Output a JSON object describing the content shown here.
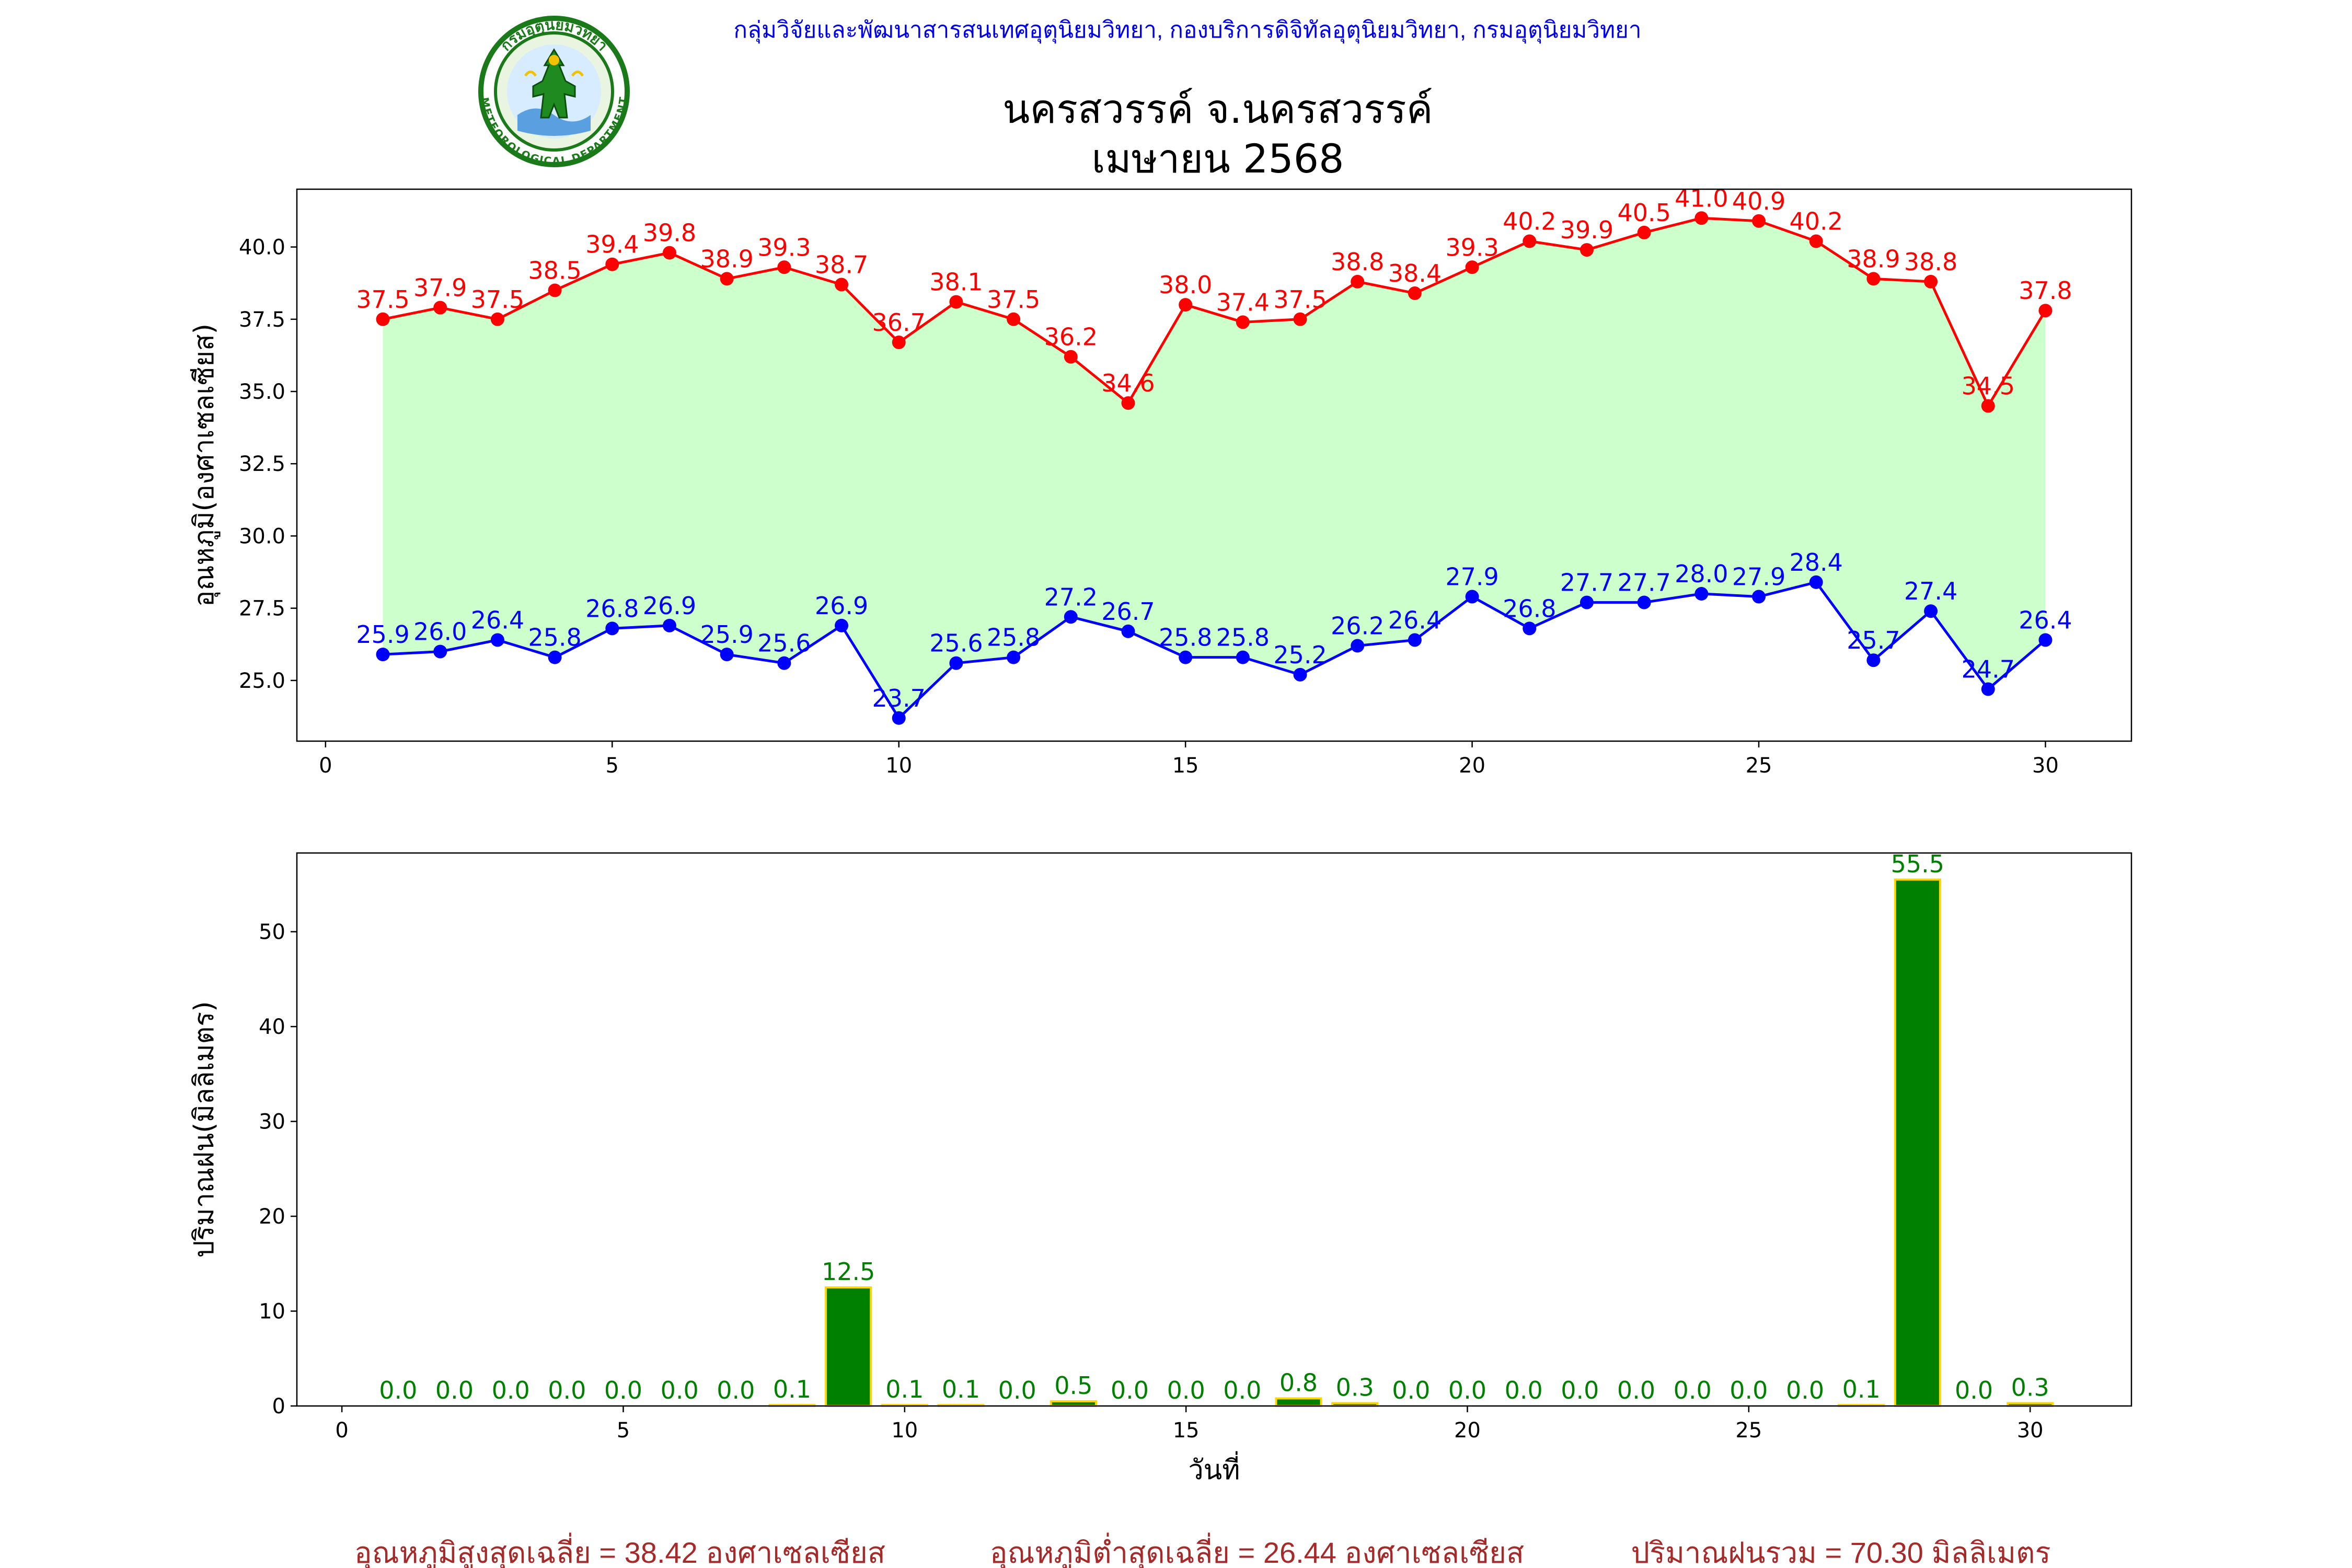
{
  "header": {
    "agency": "กลุ่มวิจัยและพัฒนาสารสนเทศอุตุนิยมวิทยา, กองบริการดิจิทัลอุตุนิยมวิทยา, กรมอุตุนิยมวิทยา",
    "title_line1": "นครสวรรค์  จ.นครสวรรค์",
    "title_line2": "เมษายน 2568",
    "logo_top_text": "กรมอุตุนิยมวิทยา",
    "logo_bottom_text": "METEOROLOGICAL DEPARTMENT"
  },
  "footer": {
    "avg_max": "อุณหภูมิสูงสุดเฉลี่ย = 38.42 องศาเซลเซียส",
    "avg_min": "อุณหภูมิต่ำสุดเฉลี่ย = 26.44 องศาเซลเซียส",
    "total_rain": "ปริมาณฝนรวม = 70.30 มิลลิเมตร"
  },
  "chart_data": [
    {
      "type": "line",
      "ylabel": "อุณหภูมิ(องศาเซลเซียส)",
      "xlim": [
        -0.5,
        31.5
      ],
      "ylim": [
        22.9,
        42.0
      ],
      "xticks": [
        0,
        5,
        10,
        15,
        20,
        25,
        30
      ],
      "yticks": [
        25.0,
        27.5,
        30.0,
        32.5,
        35.0,
        37.5,
        40.0
      ],
      "x": [
        1,
        2,
        3,
        4,
        5,
        6,
        7,
        8,
        9,
        10,
        11,
        12,
        13,
        14,
        15,
        16,
        17,
        18,
        19,
        20,
        21,
        22,
        23,
        24,
        25,
        26,
        27,
        28,
        29,
        30
      ],
      "series": [
        {
          "name": "max",
          "color": "#ff0000",
          "values": [
            37.5,
            37.9,
            37.5,
            38.5,
            39.4,
            39.8,
            38.9,
            39.3,
            38.7,
            36.7,
            38.1,
            37.5,
            36.2,
            34.6,
            38.0,
            37.4,
            37.5,
            38.8,
            38.4,
            39.3,
            40.2,
            39.9,
            40.5,
            41.0,
            40.9,
            40.2,
            38.9,
            38.8,
            34.5,
            37.8
          ]
        },
        {
          "name": "min",
          "color": "#0000ff",
          "values": [
            25.9,
            26.0,
            26.4,
            25.8,
            26.8,
            26.9,
            25.9,
            25.6,
            26.9,
            23.7,
            25.6,
            25.8,
            27.2,
            26.7,
            25.8,
            25.8,
            25.2,
            26.2,
            26.4,
            27.9,
            26.8,
            27.7,
            27.7,
            28.0,
            27.9,
            28.4,
            25.7,
            27.4,
            24.7,
            26.4
          ]
        }
      ],
      "fill_color": "#ccffcc",
      "grid": false
    },
    {
      "type": "bar",
      "xlabel": "วันที่",
      "ylabel": "ปริมาณฝน(มิลลิเมตร)",
      "xlim": [
        -0.8,
        31.8
      ],
      "ylim": [
        0,
        58.3
      ],
      "xticks": [
        0,
        5,
        10,
        15,
        20,
        25,
        30
      ],
      "yticks": [
        0,
        10,
        20,
        30,
        40,
        50
      ],
      "x": [
        1,
        2,
        3,
        4,
        5,
        6,
        7,
        8,
        9,
        10,
        11,
        12,
        13,
        14,
        15,
        16,
        17,
        18,
        19,
        20,
        21,
        22,
        23,
        24,
        25,
        26,
        27,
        28,
        29,
        30
      ],
      "values": [
        0.0,
        0.0,
        0.0,
        0.0,
        0.0,
        0.0,
        0.0,
        0.1,
        12.5,
        0.1,
        0.1,
        0.0,
        0.5,
        0.0,
        0.0,
        0.0,
        0.8,
        0.3,
        0.0,
        0.0,
        0.0,
        0.0,
        0.0,
        0.0,
        0.0,
        0.0,
        0.1,
        55.5,
        0.0,
        0.3
      ],
      "bar_color": "#008000",
      "bar_edge_color": "#ffd700",
      "label_color": "#008000",
      "grid": false
    }
  ]
}
